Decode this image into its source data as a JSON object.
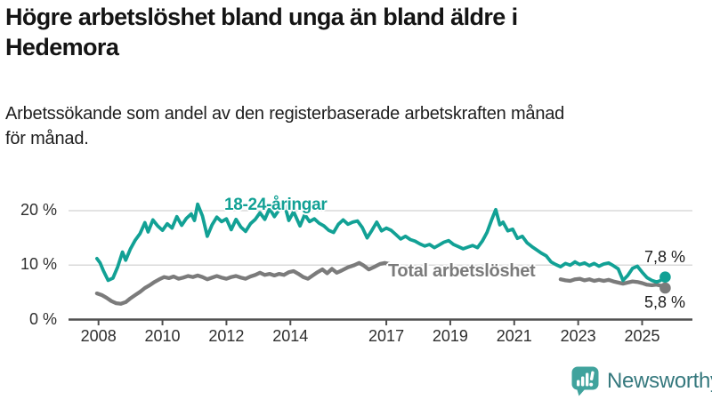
{
  "header": {
    "title": "Högre arbetslöshet bland unga än bland äldre i Hedemora",
    "title_lines": [
      "Högre arbetslöshet bland unga än bland äldre i",
      "Hedemora"
    ],
    "subtitle": "Arbetssökande som andel av den registerbaserade arbetskraften månad för månad.",
    "subtitle_lines": [
      "Arbetssökande som andel av den registerbaserade arbetskraften månad",
      "för månad."
    ]
  },
  "chart_data": {
    "type": "line",
    "title": "Högre arbetslöshet bland unga än bland äldre i Hedemora",
    "subtitle": "Arbetssökande som andel av den registerbaserade arbetskraften månad för månad.",
    "unit": "%",
    "grid": "horizontal",
    "legend": "inline-labels",
    "xlim": [
      2007.9,
      2025.9
    ],
    "ylim": [
      0,
      22
    ],
    "x_ticks": [
      2008,
      2010,
      2012,
      2014,
      2017,
      2019,
      2021,
      2023,
      2025
    ],
    "x_tick_labels": [
      "2008",
      "2010",
      "2012",
      "2014",
      "2017",
      "2019",
      "2021",
      "2023",
      "2025"
    ],
    "y_ticks": [
      0,
      10,
      20
    ],
    "y_tick_labels": [
      "0 %",
      "10 %",
      "20 %"
    ],
    "series": [
      {
        "name": "18-24-åringar",
        "color": "#12a195",
        "end_label": "7,8 %",
        "end_value": 7.8,
        "points": [
          [
            2007.95,
            11.2
          ],
          [
            2008.05,
            10.4
          ],
          [
            2008.15,
            9.0
          ],
          [
            2008.3,
            7.2
          ],
          [
            2008.45,
            7.6
          ],
          [
            2008.6,
            9.7
          ],
          [
            2008.75,
            12.4
          ],
          [
            2008.85,
            10.9
          ],
          [
            2009.0,
            13.0
          ],
          [
            2009.15,
            14.6
          ],
          [
            2009.3,
            15.8
          ],
          [
            2009.45,
            17.8
          ],
          [
            2009.55,
            16.1
          ],
          [
            2009.7,
            18.3
          ],
          [
            2009.85,
            17.2
          ],
          [
            2010.0,
            16.4
          ],
          [
            2010.15,
            17.6
          ],
          [
            2010.3,
            16.8
          ],
          [
            2010.45,
            18.9
          ],
          [
            2010.6,
            17.3
          ],
          [
            2010.75,
            18.6
          ],
          [
            2010.9,
            19.4
          ],
          [
            2011.0,
            18.2
          ],
          [
            2011.1,
            21.2
          ],
          [
            2011.25,
            19.0
          ],
          [
            2011.4,
            15.3
          ],
          [
            2011.55,
            17.4
          ],
          [
            2011.7,
            18.8
          ],
          [
            2011.85,
            18.0
          ],
          [
            2012.0,
            18.5
          ],
          [
            2012.15,
            16.5
          ],
          [
            2012.3,
            18.4
          ],
          [
            2012.45,
            17.0
          ],
          [
            2012.6,
            16.2
          ],
          [
            2012.75,
            17.6
          ],
          [
            2012.9,
            18.4
          ],
          [
            2013.05,
            19.6
          ],
          [
            2013.2,
            18.4
          ],
          [
            2013.35,
            20.4
          ],
          [
            2013.5,
            18.9
          ],
          [
            2013.65,
            20.2
          ],
          [
            2013.8,
            21.5
          ],
          [
            2013.95,
            18.2
          ],
          [
            2014.1,
            19.8
          ],
          [
            2014.3,
            17.2
          ],
          [
            2014.45,
            19.3
          ],
          [
            2014.6,
            18.0
          ],
          [
            2014.75,
            18.5
          ],
          [
            2014.9,
            17.7
          ],
          [
            2015.05,
            17.2
          ],
          [
            2015.2,
            16.4
          ],
          [
            2015.35,
            16.0
          ],
          [
            2015.5,
            17.5
          ],
          [
            2015.65,
            18.3
          ],
          [
            2015.8,
            17.5
          ],
          [
            2015.95,
            17.9
          ],
          [
            2016.1,
            18.1
          ],
          [
            2016.25,
            16.9
          ],
          [
            2016.4,
            15.0
          ],
          [
            2016.55,
            16.4
          ],
          [
            2016.7,
            17.9
          ],
          [
            2016.85,
            16.3
          ],
          [
            2017.0,
            16.8
          ],
          [
            2017.15,
            16.4
          ],
          [
            2017.3,
            15.6
          ],
          [
            2017.45,
            14.8
          ],
          [
            2017.6,
            15.3
          ],
          [
            2017.75,
            14.7
          ],
          [
            2017.9,
            14.4
          ],
          [
            2018.05,
            13.9
          ],
          [
            2018.2,
            13.5
          ],
          [
            2018.35,
            13.8
          ],
          [
            2018.5,
            13.2
          ],
          [
            2018.65,
            13.7
          ],
          [
            2018.8,
            14.2
          ],
          [
            2018.95,
            14.5
          ],
          [
            2019.1,
            13.8
          ],
          [
            2019.25,
            13.4
          ],
          [
            2019.4,
            13.0
          ],
          [
            2019.55,
            13.3
          ],
          [
            2019.7,
            13.6
          ],
          [
            2019.85,
            13.2
          ],
          [
            2020.0,
            14.4
          ],
          [
            2020.15,
            16.0
          ],
          [
            2020.3,
            18.4
          ],
          [
            2020.42,
            20.2
          ],
          [
            2020.55,
            17.4
          ],
          [
            2020.65,
            17.9
          ],
          [
            2020.8,
            16.3
          ],
          [
            2020.95,
            16.6
          ],
          [
            2021.1,
            14.9
          ],
          [
            2021.25,
            15.3
          ],
          [
            2021.4,
            14.1
          ],
          [
            2021.55,
            13.4
          ],
          [
            2021.7,
            12.8
          ],
          [
            2021.85,
            12.2
          ],
          [
            2022.0,
            11.7
          ],
          [
            2022.15,
            10.6
          ],
          [
            2022.3,
            10.1
          ],
          [
            2022.45,
            9.7
          ],
          [
            2022.6,
            10.3
          ],
          [
            2022.75,
            10.0
          ],
          [
            2022.9,
            10.6
          ],
          [
            2023.05,
            10.1
          ],
          [
            2023.2,
            10.4
          ],
          [
            2023.35,
            9.9
          ],
          [
            2023.5,
            10.3
          ],
          [
            2023.65,
            9.8
          ],
          [
            2023.8,
            10.2
          ],
          [
            2023.95,
            10.4
          ],
          [
            2024.1,
            9.9
          ],
          [
            2024.25,
            9.3
          ],
          [
            2024.4,
            7.2
          ],
          [
            2024.55,
            8.1
          ],
          [
            2024.7,
            9.4
          ],
          [
            2024.85,
            9.8
          ],
          [
            2025.0,
            8.7
          ],
          [
            2025.15,
            7.7
          ],
          [
            2025.3,
            7.2
          ],
          [
            2025.45,
            6.9
          ],
          [
            2025.55,
            7.1
          ],
          [
            2025.72,
            7.8
          ]
        ]
      },
      {
        "name": "Total arbetslöshet",
        "color": "#7b7b7b",
        "end_label": "5,8 %",
        "end_value": 5.8,
        "label_cover_range": [
          2017.1,
          2022.45
        ],
        "points": [
          [
            2007.95,
            4.8
          ],
          [
            2008.1,
            4.5
          ],
          [
            2008.25,
            4.0
          ],
          [
            2008.4,
            3.4
          ],
          [
            2008.55,
            3.0
          ],
          [
            2008.7,
            2.9
          ],
          [
            2008.85,
            3.2
          ],
          [
            2009.0,
            3.9
          ],
          [
            2009.15,
            4.5
          ],
          [
            2009.3,
            5.1
          ],
          [
            2009.45,
            5.8
          ],
          [
            2009.6,
            6.3
          ],
          [
            2009.75,
            6.9
          ],
          [
            2009.9,
            7.4
          ],
          [
            2010.05,
            7.8
          ],
          [
            2010.2,
            7.6
          ],
          [
            2010.35,
            7.9
          ],
          [
            2010.5,
            7.5
          ],
          [
            2010.65,
            7.7
          ],
          [
            2010.8,
            8.0
          ],
          [
            2010.95,
            7.8
          ],
          [
            2011.1,
            8.1
          ],
          [
            2011.25,
            7.8
          ],
          [
            2011.4,
            7.4
          ],
          [
            2011.55,
            7.7
          ],
          [
            2011.7,
            8.0
          ],
          [
            2011.85,
            7.7
          ],
          [
            2012.0,
            7.5
          ],
          [
            2012.15,
            7.8
          ],
          [
            2012.3,
            8.0
          ],
          [
            2012.45,
            7.7
          ],
          [
            2012.6,
            7.5
          ],
          [
            2012.75,
            7.9
          ],
          [
            2012.9,
            8.2
          ],
          [
            2013.05,
            8.6
          ],
          [
            2013.2,
            8.2
          ],
          [
            2013.35,
            8.4
          ],
          [
            2013.5,
            8.1
          ],
          [
            2013.65,
            8.4
          ],
          [
            2013.8,
            8.2
          ],
          [
            2013.95,
            8.7
          ],
          [
            2014.1,
            8.9
          ],
          [
            2014.25,
            8.4
          ],
          [
            2014.4,
            7.8
          ],
          [
            2014.55,
            7.5
          ],
          [
            2014.7,
            8.1
          ],
          [
            2014.85,
            8.7
          ],
          [
            2015.0,
            9.2
          ],
          [
            2015.15,
            8.5
          ],
          [
            2015.3,
            9.3
          ],
          [
            2015.45,
            8.6
          ],
          [
            2015.6,
            9.0
          ],
          [
            2015.8,
            9.6
          ],
          [
            2016.0,
            10.0
          ],
          [
            2016.15,
            10.4
          ],
          [
            2016.3,
            9.9
          ],
          [
            2016.45,
            9.2
          ],
          [
            2016.6,
            9.6
          ],
          [
            2016.8,
            10.2
          ],
          [
            2016.95,
            10.4
          ],
          [
            2017.1,
            10.2
          ],
          [
            2017.3,
            10.0
          ],
          [
            2017.6,
            9.7
          ],
          [
            2017.9,
            9.9
          ],
          [
            2018.2,
            9.4
          ],
          [
            2018.5,
            9.0
          ],
          [
            2018.8,
            9.2
          ],
          [
            2019.1,
            8.8
          ],
          [
            2019.4,
            8.5
          ],
          [
            2019.7,
            8.7
          ],
          [
            2020.0,
            8.9
          ],
          [
            2020.3,
            9.5
          ],
          [
            2020.6,
            9.3
          ],
          [
            2020.9,
            9.0
          ],
          [
            2021.2,
            8.7
          ],
          [
            2021.5,
            8.3
          ],
          [
            2021.8,
            7.9
          ],
          [
            2022.1,
            7.6
          ],
          [
            2022.3,
            7.5
          ],
          [
            2022.45,
            7.4
          ],
          [
            2022.6,
            7.2
          ],
          [
            2022.75,
            7.1
          ],
          [
            2022.9,
            7.4
          ],
          [
            2023.05,
            7.5
          ],
          [
            2023.2,
            7.2
          ],
          [
            2023.35,
            7.4
          ],
          [
            2023.5,
            7.1
          ],
          [
            2023.65,
            7.3
          ],
          [
            2023.8,
            7.1
          ],
          [
            2023.95,
            7.3
          ],
          [
            2024.1,
            7.0
          ],
          [
            2024.25,
            6.8
          ],
          [
            2024.4,
            6.6
          ],
          [
            2024.55,
            6.8
          ],
          [
            2024.7,
            7.0
          ],
          [
            2024.85,
            6.9
          ],
          [
            2025.0,
            6.7
          ],
          [
            2025.15,
            6.4
          ],
          [
            2025.3,
            6.3
          ],
          [
            2025.45,
            6.4
          ],
          [
            2025.6,
            6.2
          ],
          [
            2025.72,
            5.8
          ]
        ]
      }
    ],
    "colors": {
      "young_series": "#12a195",
      "total_series": "#7b7b7b",
      "gridline": "#dadada",
      "axis": "#4f4f4f"
    }
  },
  "footer": {
    "brand": "Newsworthy"
  }
}
